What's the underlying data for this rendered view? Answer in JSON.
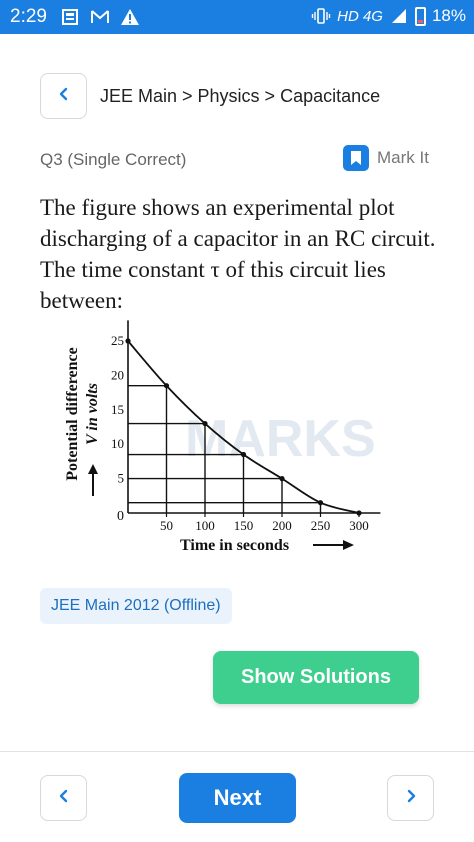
{
  "status_bar": {
    "time": "2:29",
    "network": "HD 4G",
    "battery": "18%"
  },
  "header": {
    "breadcrumb": "JEE Main > Physics > Capacitance"
  },
  "question": {
    "meta": "Q3 (Single Correct)",
    "mark_label": "Mark It",
    "text": "The figure shows an experimental plot discharging of a capacitor in an RC circuit. The time constant τ of this circuit lies between:"
  },
  "figure": {
    "watermark": "MARKS",
    "y_axis_label_line1": "Potential difference",
    "y_axis_label_line2": "V in volts",
    "x_axis_label": "Time in seconds",
    "origin_label": "0"
  },
  "chart_data": {
    "type": "line",
    "x": [
      0,
      50,
      100,
      150,
      200,
      250,
      300
    ],
    "y": [
      25,
      18.5,
      13,
      8.5,
      5,
      1.5,
      0
    ],
    "xticks": [
      "50",
      "100",
      "150",
      "200",
      "250",
      "300"
    ],
    "yticks": [
      "5",
      "10",
      "15",
      "20",
      "25"
    ],
    "xlabel": "Time in seconds",
    "ylabel": "Potential difference V in volts",
    "xlim": [
      0,
      320
    ],
    "ylim": [
      0,
      28
    ]
  },
  "tag": "JEE Main 2012 (Offline)",
  "actions": {
    "show_solutions": "Show Solutions",
    "next": "Next"
  },
  "colors": {
    "primary": "#1a7fe0",
    "success": "#3ecf8e",
    "tag_bg": "#eaf3fb"
  }
}
